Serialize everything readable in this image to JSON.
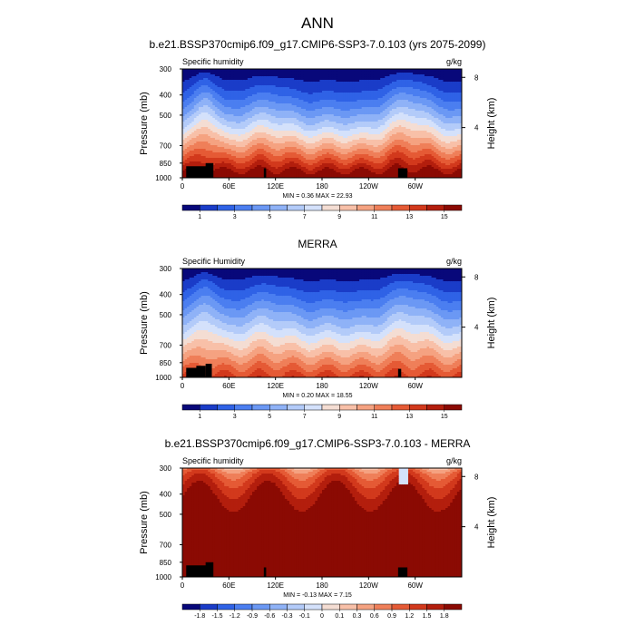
{
  "figure": {
    "title": "ANN"
  },
  "chart_data": [
    {
      "type": "heatmap",
      "panel_title": "b.e21.BSSP370cmip6.f09_g17.CMIP6-SSP3-7.0.103 (yrs 2075-2099)",
      "variable_label": "Specific humidity",
      "units": "g/kg",
      "ylabel": "Pressure (mb)",
      "ylabel_right": "Height (km)",
      "x_ticks": [
        "0",
        "60E",
        "120E",
        "180",
        "120W",
        "60W"
      ],
      "x_tick_lon": [
        0,
        60,
        120,
        180,
        240,
        300
      ],
      "xlim_lon": [
        0,
        360
      ],
      "y_ticks": [
        "300",
        "400",
        "500",
        "700",
        "850",
        "1000"
      ],
      "y_tick_p": [
        300,
        400,
        500,
        700,
        850,
        1000
      ],
      "ylim_p": [
        300,
        1000
      ],
      "y_scale": "log",
      "height_ticks": [
        "8",
        "4"
      ],
      "height_tick_km": [
        8,
        4
      ],
      "stats": {
        "min_label": "MIN =",
        "min": "0.36",
        "max_label": "MAX =",
        "max": "22.93"
      },
      "colorbar": {
        "labels": [
          "1",
          "3",
          "5",
          "7",
          "9",
          "11",
          "13",
          "15"
        ],
        "levels": [
          0,
          1,
          2,
          3,
          4,
          5,
          6,
          7,
          8,
          9,
          10,
          11,
          12,
          13,
          14,
          15,
          16
        ],
        "colors": [
          "#08087a",
          "#1a3cc8",
          "#2f62e6",
          "#4b7ef0",
          "#6b98f4",
          "#8fb2f7",
          "#b3cbf9",
          "#d4e1fb",
          "#f4ddd3",
          "#f8c0a8",
          "#f5a281",
          "#ef7f59",
          "#e55a35",
          "#d2391c",
          "#b31e0d",
          "#8b0a03"
        ]
      },
      "field": {
        "surface_q": 16.5,
        "top_q": 0.4,
        "scale_height_factor": 1.55,
        "moist_regions_lon": [
          [
            10,
            50,
            0.45
          ],
          [
            70,
            150,
            0.25
          ],
          [
            150,
            240,
            0.05
          ],
          [
            250,
            330,
            0.4
          ]
        ]
      },
      "topography_lon": [
        [
          5,
          35,
          880
        ],
        [
          30,
          40,
          850
        ],
        [
          105,
          108,
          900
        ],
        [
          278,
          290,
          900
        ]
      ]
    },
    {
      "type": "heatmap",
      "panel_title": "MERRA",
      "variable_label": "Specific Humidity",
      "units": "g/kg",
      "ylabel": "Pressure (mb)",
      "ylabel_right": "Height (km)",
      "x_ticks": [
        "0",
        "60E",
        "120E",
        "180",
        "120W",
        "60W"
      ],
      "x_tick_lon": [
        0,
        60,
        120,
        180,
        240,
        300
      ],
      "xlim_lon": [
        0,
        360
      ],
      "y_ticks": [
        "300",
        "400",
        "500",
        "700",
        "850",
        "1000"
      ],
      "y_tick_p": [
        300,
        400,
        500,
        700,
        850,
        1000
      ],
      "ylim_p": [
        300,
        1000
      ],
      "y_scale": "log",
      "height_ticks": [
        "8",
        "4"
      ],
      "height_tick_km": [
        8,
        4
      ],
      "stats": {
        "min_label": "MIN =",
        "min": "0.20",
        "max_label": "MAX =",
        "max": "18.55"
      },
      "colorbar": {
        "labels": [
          "1",
          "3",
          "5",
          "7",
          "9",
          "11",
          "13",
          "15"
        ],
        "levels": [
          0,
          1,
          2,
          3,
          4,
          5,
          6,
          7,
          8,
          9,
          10,
          11,
          12,
          13,
          14,
          15,
          16
        ],
        "colors": [
          "#08087a",
          "#1a3cc8",
          "#2f62e6",
          "#4b7ef0",
          "#6b98f4",
          "#8fb2f7",
          "#b3cbf9",
          "#d4e1fb",
          "#f4ddd3",
          "#f8c0a8",
          "#f5a281",
          "#ef7f59",
          "#e55a35",
          "#d2391c",
          "#b31e0d",
          "#8b0a03"
        ]
      },
      "field": {
        "surface_q": 13.5,
        "top_q": 0.25,
        "scale_height_factor": 1.35,
        "moist_regions_lon": [
          [
            10,
            50,
            0.4
          ],
          [
            70,
            150,
            0.25
          ],
          [
            150,
            240,
            0.05
          ],
          [
            250,
            330,
            0.35
          ]
        ]
      },
      "topography_lon": [
        [
          5,
          20,
          900
        ],
        [
          18,
          30,
          880
        ],
        [
          30,
          38,
          860
        ],
        [
          278,
          282,
          910
        ]
      ]
    },
    {
      "type": "heatmap",
      "panel_title": "b.e21.BSSP370cmip6.f09_g17.CMIP6-SSP3-7.0.103 - MERRA",
      "variable_label": "Specific humidity",
      "units": "g/kg",
      "ylabel": "Pressure (mb)",
      "ylabel_right": "Height (km)",
      "x_ticks": [
        "0",
        "60E",
        "120E",
        "180",
        "120W",
        "60W"
      ],
      "x_tick_lon": [
        0,
        60,
        120,
        180,
        240,
        300
      ],
      "xlim_lon": [
        0,
        360
      ],
      "y_ticks": [
        "300",
        "400",
        "500",
        "700",
        "850",
        "1000"
      ],
      "y_tick_p": [
        300,
        400,
        500,
        700,
        850,
        1000
      ],
      "ylim_p": [
        300,
        1000
      ],
      "y_scale": "log",
      "height_ticks": [
        "8",
        "4"
      ],
      "height_tick_km": [
        8,
        4
      ],
      "stats": {
        "min_label": "MIN =",
        "min": "-0.13",
        "max_label": "MAX =",
        "max": "7.15"
      },
      "colorbar": {
        "labels": [
          "-1.8",
          "-1.5",
          "-1.2",
          "-0.9",
          "-0.6",
          "-0.3",
          "-0.1",
          "0",
          "0.1",
          "0.3",
          "0.6",
          "0.9",
          "1.2",
          "1.5",
          "1.8"
        ],
        "levels": [
          -2.1,
          -1.8,
          -1.5,
          -1.2,
          -0.9,
          -0.6,
          -0.3,
          -0.1,
          0,
          0.1,
          0.3,
          0.6,
          0.9,
          1.2,
          1.5,
          1.8,
          2.1
        ],
        "colors": [
          "#08087a",
          "#1a3cc8",
          "#2f62e6",
          "#4b7ef0",
          "#6b98f4",
          "#8fb2f7",
          "#b3cbf9",
          "#d4e1fb",
          "#f4ddd3",
          "#f8c0a8",
          "#f5a281",
          "#ef7f59",
          "#e55a35",
          "#d2391c",
          "#b31e0d",
          "#8b0a03"
        ]
      },
      "field": {
        "mode": "difference",
        "surface_q": 3.0,
        "top_q": 0.35
      },
      "topography_lon": [
        [
          5,
          35,
          880
        ],
        [
          30,
          40,
          850
        ],
        [
          105,
          108,
          900
        ],
        [
          278,
          290,
          900
        ]
      ]
    }
  ]
}
